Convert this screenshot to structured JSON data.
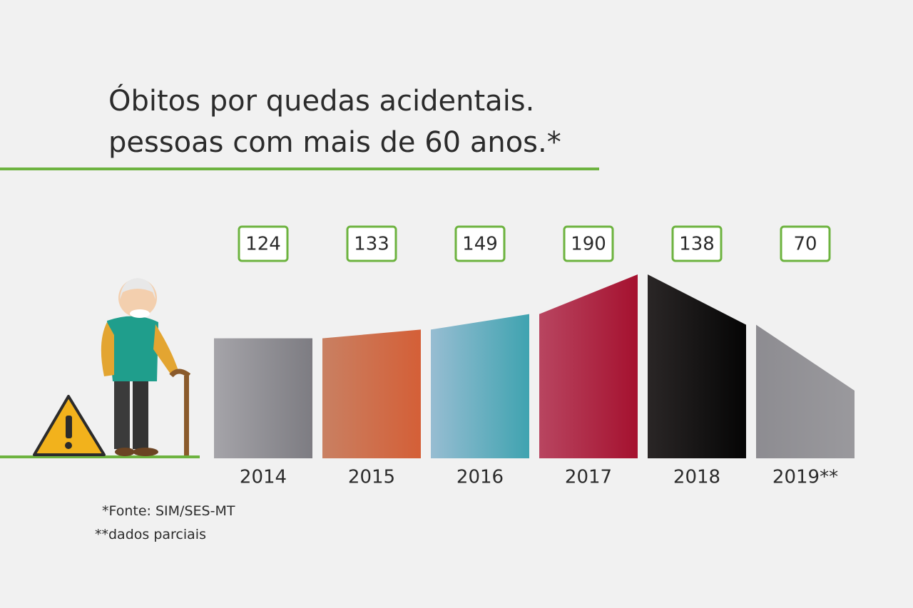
{
  "chart_data": {
    "type": "bar",
    "title_lines": [
      "Óbitos por quedas acidentais.",
      "pessoas com mais de 60 anos.*"
    ],
    "categories": [
      "2014",
      "2015",
      "2016",
      "2017",
      "2018",
      "2019**"
    ],
    "values": [
      124,
      133,
      149,
      190,
      138,
      70
    ],
    "colors": [
      [
        "#a5a4a9",
        "#7d7c82"
      ],
      [
        "#c98062",
        "#d45f37"
      ],
      [
        "#97bdd2",
        "#3fa3b0"
      ],
      [
        "#b84560",
        "#a5112f"
      ],
      [
        "#2a2626",
        "#050505"
      ],
      [
        "#8d8c91",
        "#9a999d"
      ]
    ],
    "notes": [
      "*Fonte: SIM/SES-MT",
      "**dados parciais"
    ]
  }
}
